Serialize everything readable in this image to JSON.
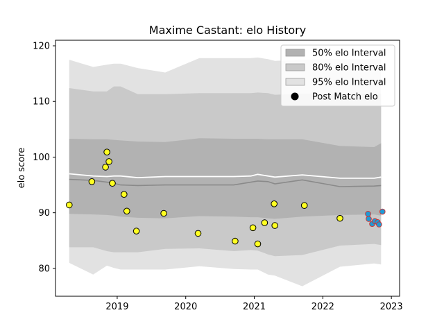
{
  "chart_data": {
    "type": "scatter",
    "title": "Maxime Castant: elo History",
    "xlabel": "",
    "ylabel": "elo score",
    "xlim": [
      2018.1,
      2023.12
    ],
    "ylim": [
      75,
      121
    ],
    "x_ticks": [
      {
        "value": 2019,
        "label": "2019"
      },
      {
        "value": 2020,
        "label": "2020"
      },
      {
        "value": 2021,
        "label": "2021"
      },
      {
        "value": 2022,
        "label": "2022"
      },
      {
        "value": 2023,
        "label": "2023"
      }
    ],
    "y_ticks": [
      {
        "value": 80,
        "label": "80"
      },
      {
        "value": 90,
        "label": "90"
      },
      {
        "value": 100,
        "label": "100"
      },
      {
        "value": 110,
        "label": "110"
      },
      {
        "value": 120,
        "label": "120"
      }
    ],
    "grid": false,
    "legend_position": "top-right",
    "legend": [
      {
        "label": "50% elo Interval",
        "kind": "patch",
        "color": "#b2b2b2"
      },
      {
        "label": "80% elo Interval",
        "kind": "patch",
        "color": "#c9c9c9"
      },
      {
        "label": "95% elo Interval",
        "kind": "patch",
        "color": "#e2e2e2"
      },
      {
        "label": "Post Match elo",
        "kind": "marker",
        "color": "#000000"
      }
    ],
    "bands": {
      "x": [
        2018.3,
        2018.65,
        2018.85,
        2018.95,
        2019.05,
        2019.3,
        2019.7,
        2020.2,
        2020.7,
        2020.95,
        2021.05,
        2021.2,
        2021.3,
        2021.7,
        2022.25,
        2022.75,
        2022.85
      ],
      "band95": {
        "upper": [
          117.5,
          116.2,
          116.6,
          116.8,
          116.8,
          116.0,
          115.2,
          117.8,
          117.8,
          117.8,
          117.9,
          117.6,
          117.3,
          117.5,
          117.6,
          117.6,
          117.6
        ],
        "lower": [
          81.0,
          78.9,
          80.5,
          80.1,
          79.8,
          79.8,
          79.8,
          80.4,
          79.9,
          79.8,
          79.8,
          78.9,
          78.7,
          76.8,
          80.3,
          80.9,
          80.7
        ]
      },
      "band80": {
        "upper": [
          112.4,
          111.8,
          111.8,
          112.7,
          112.7,
          111.3,
          111.3,
          111.5,
          111.5,
          111.5,
          111.6,
          111.5,
          111.2,
          111.4,
          111.4,
          111.4,
          111.4
        ],
        "lower": [
          83.8,
          83.8,
          83.1,
          82.9,
          82.9,
          82.9,
          83.5,
          83.6,
          83.1,
          83.3,
          83.2,
          82.5,
          82.2,
          82.4,
          84.1,
          84.4,
          84.2
        ]
      },
      "band50": {
        "upper": [
          103.3,
          103.2,
          103.2,
          103.1,
          103.0,
          102.8,
          102.7,
          103.4,
          103.3,
          103.3,
          103.3,
          103.2,
          103.2,
          103.2,
          102.0,
          101.8,
          102.5
        ],
        "lower": [
          89.8,
          89.7,
          89.6,
          89.5,
          89.3,
          89.1,
          89.0,
          89.4,
          89.3,
          89.2,
          89.2,
          89.0,
          88.9,
          89.3,
          89.6,
          89.7,
          89.5
        ]
      },
      "median": [
        96.0,
        95.8,
        95.5,
        95.3,
        95.0,
        94.9,
        95.0,
        95.0,
        95.0,
        95.5,
        95.7,
        95.6,
        95.2,
        95.9,
        94.7,
        94.8,
        94.9
      ],
      "mean": [
        97.0,
        96.6,
        96.5,
        96.6,
        96.6,
        96.3,
        96.5,
        96.5,
        96.5,
        96.6,
        96.9,
        96.6,
        96.4,
        96.8,
        96.2,
        96.2,
        96.4
      ]
    },
    "series": [
      {
        "name": "Post Match elo",
        "points": [
          [
            2018.3,
            91.4
          ],
          [
            2018.63,
            95.6
          ],
          [
            2018.83,
            98.2
          ],
          [
            2018.85,
            100.9
          ],
          [
            2018.88,
            99.2
          ],
          [
            2018.93,
            95.3
          ],
          [
            2019.1,
            93.3
          ],
          [
            2019.14,
            90.3
          ],
          [
            2019.28,
            86.7
          ],
          [
            2019.68,
            89.9
          ],
          [
            2020.18,
            86.3
          ],
          [
            2020.72,
            84.9
          ],
          [
            2020.98,
            87.3
          ],
          [
            2021.05,
            84.4
          ],
          [
            2021.15,
            88.2
          ],
          [
            2021.29,
            91.6
          ],
          [
            2021.3,
            87.7
          ],
          [
            2021.73,
            91.3
          ],
          [
            2022.25,
            89.0
          ]
        ],
        "color": "#ffff22",
        "edge": "#000000"
      },
      {
        "name": "",
        "points": [
          [
            2022.66,
            89.8
          ],
          [
            2022.67,
            88.9
          ],
          [
            2022.72,
            88.0
          ],
          [
            2022.76,
            88.5
          ],
          [
            2022.8,
            88.3
          ],
          [
            2022.82,
            87.9
          ],
          [
            2022.87,
            90.2
          ]
        ],
        "color": "#1f9bd6",
        "edge": "#cc3333"
      }
    ]
  }
}
